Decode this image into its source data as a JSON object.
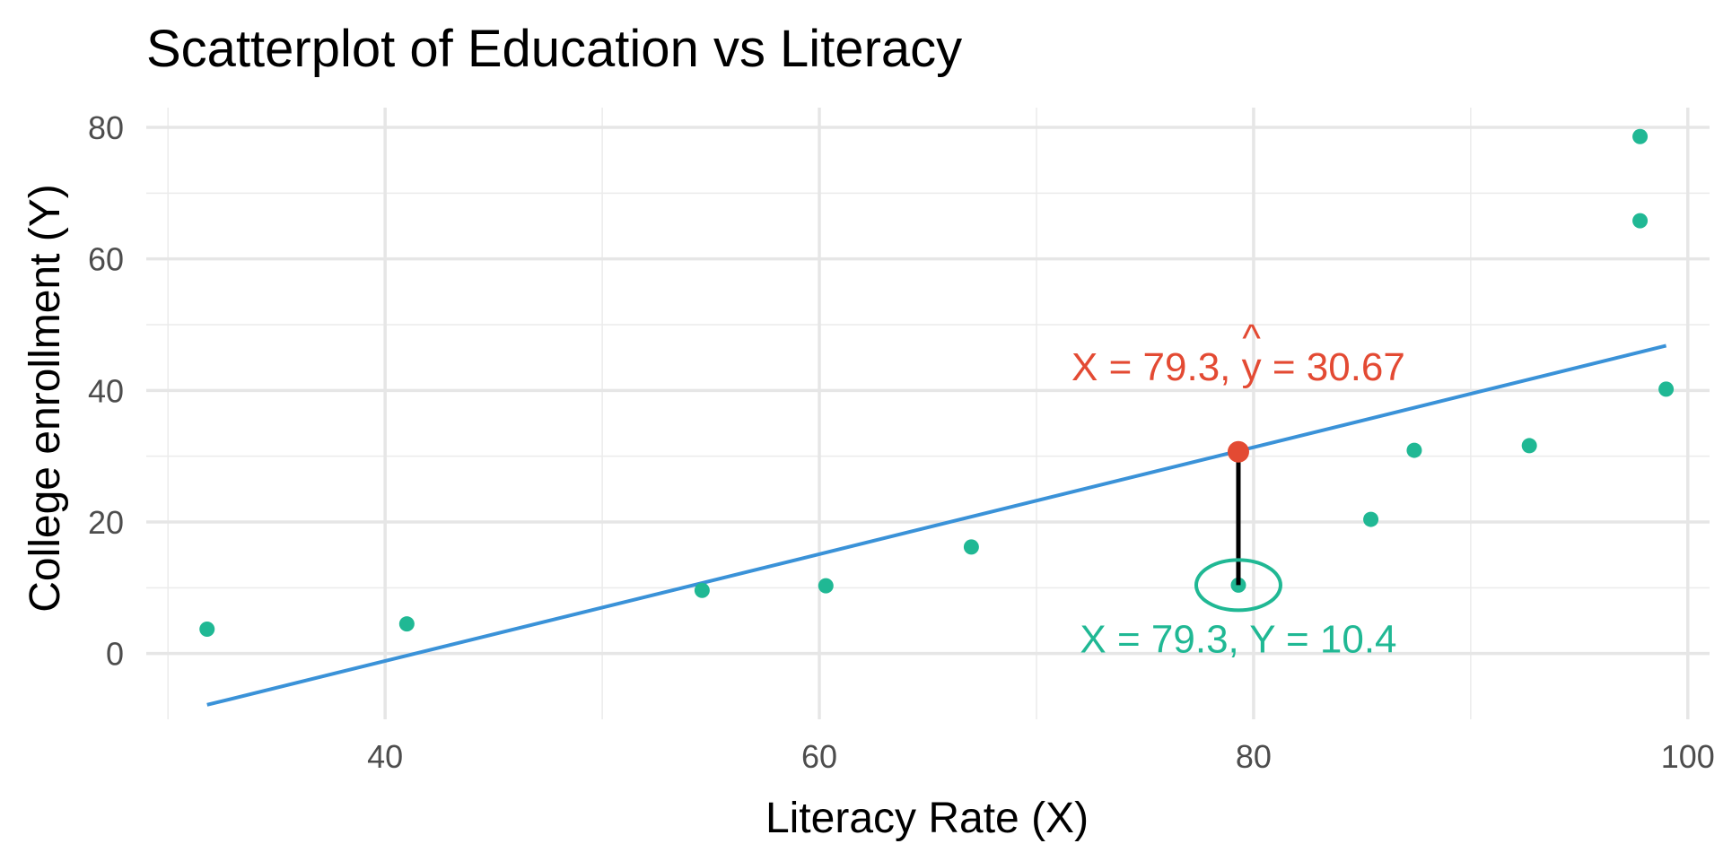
{
  "chart_data": {
    "type": "scatter",
    "title": "Scatterplot of Education vs Literacy",
    "xlabel": "Literacy Rate (X)",
    "ylabel": "College enrollment (Y)",
    "xlim": [
      29,
      101
    ],
    "ylim": [
      -10,
      83
    ],
    "x_ticks": [
      40,
      60,
      80,
      100
    ],
    "x_tick_labels": [
      "40",
      "60",
      "80",
      "100"
    ],
    "y_ticks": [
      0,
      20,
      40,
      60,
      80
    ],
    "y_tick_labels": [
      "0",
      "20",
      "40",
      "60",
      "80"
    ],
    "grid": true,
    "points": {
      "color": "#20b894",
      "x": [
        31.8,
        41.0,
        54.6,
        60.3,
        67.0,
        79.3,
        85.4,
        87.4,
        92.7,
        97.8,
        97.8,
        99.0
      ],
      "y": [
        3.7,
        4.5,
        9.6,
        10.3,
        16.2,
        10.4,
        20.4,
        30.9,
        31.6,
        65.8,
        78.6,
        40.2
      ]
    },
    "regression_line": {
      "color": "#3a92d8",
      "x": [
        31.8,
        99.0
      ],
      "y": [
        -7.8,
        46.8
      ]
    },
    "highlight": {
      "x": 79.3,
      "y_actual": 10.4,
      "y_predicted": 30.67,
      "predicted_color": "#e34a33",
      "actual_color": "#20b894",
      "residual_color": "#000000",
      "predicted_label_prefix": "X = 79.3, ",
      "predicted_label_symbol": "y",
      "predicted_label_hat": "^",
      "predicted_label_suffix": " = 30.67",
      "actual_label": "X = 79.3, Y = 10.4"
    }
  }
}
